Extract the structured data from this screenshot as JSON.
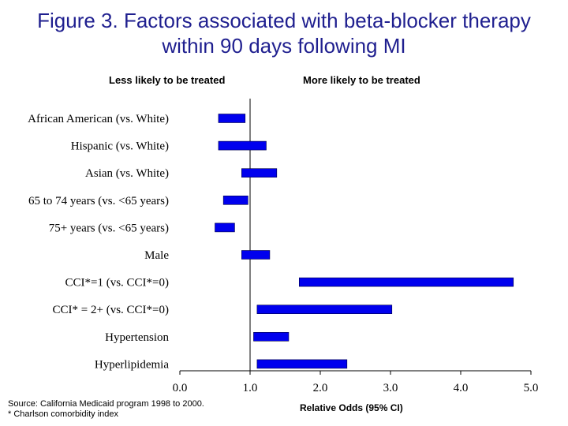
{
  "chart_data": {
    "type": "bar",
    "subtype": "floating-range (95% CI)",
    "title_lines": [
      "Figure 3. Factors associated with beta-blocker therapy",
      "within 90 days following MI"
    ],
    "left_side_label": "Less likely to be treated",
    "right_side_label": "More likely to be treated",
    "xlabel": "Relative Odds (95% CI)",
    "xlim": [
      0,
      5
    ],
    "xticks": [
      "0.0",
      "1.0",
      "2.0",
      "3.0",
      "4.0",
      "5.0"
    ],
    "reference_line": 1.0,
    "bar_color": "#0000ee",
    "categories": [
      "African American (vs. White)",
      "Hispanic (vs. White)",
      "Asian (vs. White)",
      "65 to 74 years (vs. <65 years)",
      "75+ years (vs. <65 years)",
      "Male",
      "CCI*=1 (vs. CCI*=0)",
      "CCI* = 2+ (vs. CCI*=0)",
      "Hypertension",
      "Hyperlipidemia"
    ],
    "ci_low": [
      0.55,
      0.55,
      0.88,
      0.62,
      0.5,
      0.88,
      1.7,
      1.1,
      1.05,
      1.1
    ],
    "ci_high": [
      0.93,
      1.23,
      1.38,
      0.97,
      0.78,
      1.28,
      4.75,
      3.02,
      1.55,
      2.38
    ]
  },
  "footnotes": [
    "Source: California Medicaid program 1998 to 2000.",
    "* Charlson comorbidity index"
  ]
}
